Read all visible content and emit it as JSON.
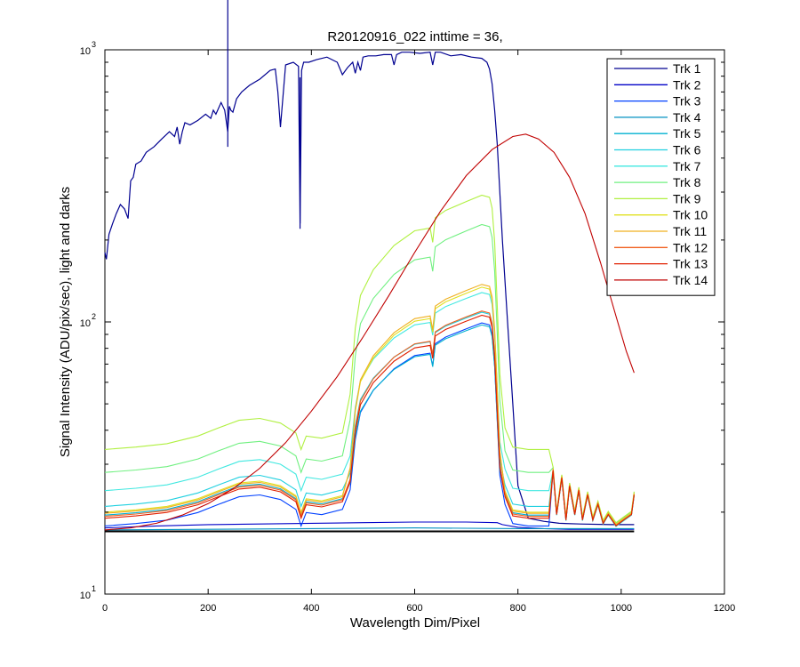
{
  "chart_data": {
    "type": "line",
    "title": "R20120916_022 inttime = 36,",
    "xlabel": "Wavelength Dim/Pixel",
    "ylabel": "Signal Intensity (ADU/pix/sec), light and darks",
    "xlim": [
      0,
      1200
    ],
    "ylim": [
      10,
      1000
    ],
    "yscale": "log",
    "grid": false,
    "legend_position": "top-right",
    "x_ticks": [
      "0",
      "200",
      "400",
      "600",
      "800",
      "1000",
      "1200"
    ],
    "y_ticks": [
      {
        "base": "10",
        "exp": "1"
      },
      {
        "base": "10",
        "exp": "2"
      },
      {
        "base": "10",
        "exp": "3"
      }
    ],
    "series": [
      {
        "name": "Trk 1",
        "color": "#000090",
        "shape": "solar",
        "x": [
          0,
          3,
          8,
          15,
          22,
          30,
          38,
          45,
          50,
          55,
          60,
          70,
          80,
          95,
          110,
          125,
          135,
          140,
          145,
          150,
          155,
          165,
          180,
          195,
          205,
          210,
          215,
          225,
          232,
          238,
          241,
          244,
          248,
          255,
          265,
          280,
          300,
          320,
          330,
          335,
          340,
          350,
          365,
          375,
          378,
          381,
          385,
          395,
          410,
          430,
          450,
          460,
          470,
          480,
          485,
          490,
          495,
          500,
          510,
          525,
          540,
          555,
          560,
          565,
          575,
          590,
          610,
          630,
          635,
          640,
          650,
          670,
          690,
          710,
          730,
          740,
          745,
          750,
          755,
          760,
          765,
          770,
          780,
          790,
          800,
          820,
          850,
          880,
          920,
          980,
          1025
        ],
        "y": [
          180,
          170,
          210,
          230,
          250,
          270,
          260,
          240,
          330,
          340,
          380,
          390,
          420,
          440,
          470,
          500,
          480,
          520,
          450,
          500,
          540,
          530,
          550,
          580,
          560,
          600,
          580,
          640,
          600,
          500,
          620,
          600,
          590,
          660,
          700,
          740,
          780,
          840,
          850,
          700,
          520,
          880,
          900,
          870,
          230,
          840,
          900,
          900,
          920,
          940,
          900,
          810,
          860,
          900,
          820,
          900,
          840,
          940,
          950,
          950,
          960,
          960,
          880,
          960,
          980,
          980,
          970,
          980,
          880,
          980,
          980,
          950,
          960,
          940,
          930,
          900,
          850,
          750,
          600,
          450,
          300,
          200,
          100,
          50,
          25,
          19,
          18.5,
          18.2,
          18.1,
          18,
          18
        ],
        "spikes": [
          [
            378,
            220
          ],
          [
            238,
            440
          ]
        ]
      },
      {
        "name": "Trk 2",
        "color": "#0000c8",
        "shape": "dark",
        "x": [
          0,
          100,
          200,
          300,
          400,
          500,
          600,
          700,
          760,
          770,
          800,
          850,
          900,
          1025
        ],
        "y": [
          17.5,
          17.8,
          18.0,
          18.1,
          18.2,
          18.3,
          18.4,
          18.4,
          18.3,
          18.0,
          17.6,
          17.4,
          17.3,
          17.3
        ]
      },
      {
        "name": "Trk 3",
        "color": "#0040ff",
        "shape": "mid",
        "scale": 0.8,
        "base": 17.8
      },
      {
        "name": "Trk 4",
        "color": "#0090c0",
        "shape": "dark",
        "x": [
          0,
          200,
          400,
          600,
          800,
          1025
        ],
        "y": [
          17.2,
          17.3,
          17.4,
          17.5,
          17.4,
          17.4
        ]
      },
      {
        "name": "Trk 5",
        "color": "#00b0d0",
        "shape": "mid",
        "scale": 0.7,
        "base": 19.5
      },
      {
        "name": "Trk 6",
        "color": "#20d0e0",
        "shape": "mid",
        "scale": 0.73,
        "base": 21.0
      },
      {
        "name": "Trk 7",
        "color": "#40e8e0",
        "shape": "mid",
        "scale": 0.76,
        "base": 24.0
      },
      {
        "name": "Trk 8",
        "color": "#70f080",
        "shape": "mid",
        "scale": 1.25,
        "base": 28.0
      },
      {
        "name": "Trk 9",
        "color": "#b0f040",
        "shape": "mid",
        "scale": 1.33,
        "base": 34.0
      },
      {
        "name": "Trk 10",
        "color": "#e0e020",
        "shape": "mid",
        "scale": 1.0,
        "base": 20.0
      },
      {
        "name": "Trk 11",
        "color": "#f0b020",
        "shape": "mid",
        "scale": 1.04,
        "base": 19.8
      },
      {
        "name": "Trk 12",
        "color": "#f06020",
        "shape": "mid",
        "scale": 0.82,
        "base": 19.3
      },
      {
        "name": "Trk 13",
        "color": "#e02000",
        "shape": "mid",
        "scale": 0.8,
        "base": 19.0
      },
      {
        "name": "Trk 14",
        "color": "#c00000",
        "shape": "lamp",
        "x": [
          0,
          50,
          100,
          150,
          200,
          250,
          300,
          350,
          400,
          450,
          500,
          550,
          600,
          650,
          700,
          750,
          790,
          815,
          840,
          870,
          900,
          930,
          960,
          990,
          1010,
          1025
        ],
        "y": [
          17.2,
          17.5,
          18.2,
          19.5,
          21.5,
          24.5,
          29,
          36,
          47,
          63,
          88,
          125,
          180,
          255,
          345,
          430,
          480,
          490,
          470,
          420,
          340,
          250,
          165,
          105,
          78,
          65
        ]
      }
    ]
  }
}
